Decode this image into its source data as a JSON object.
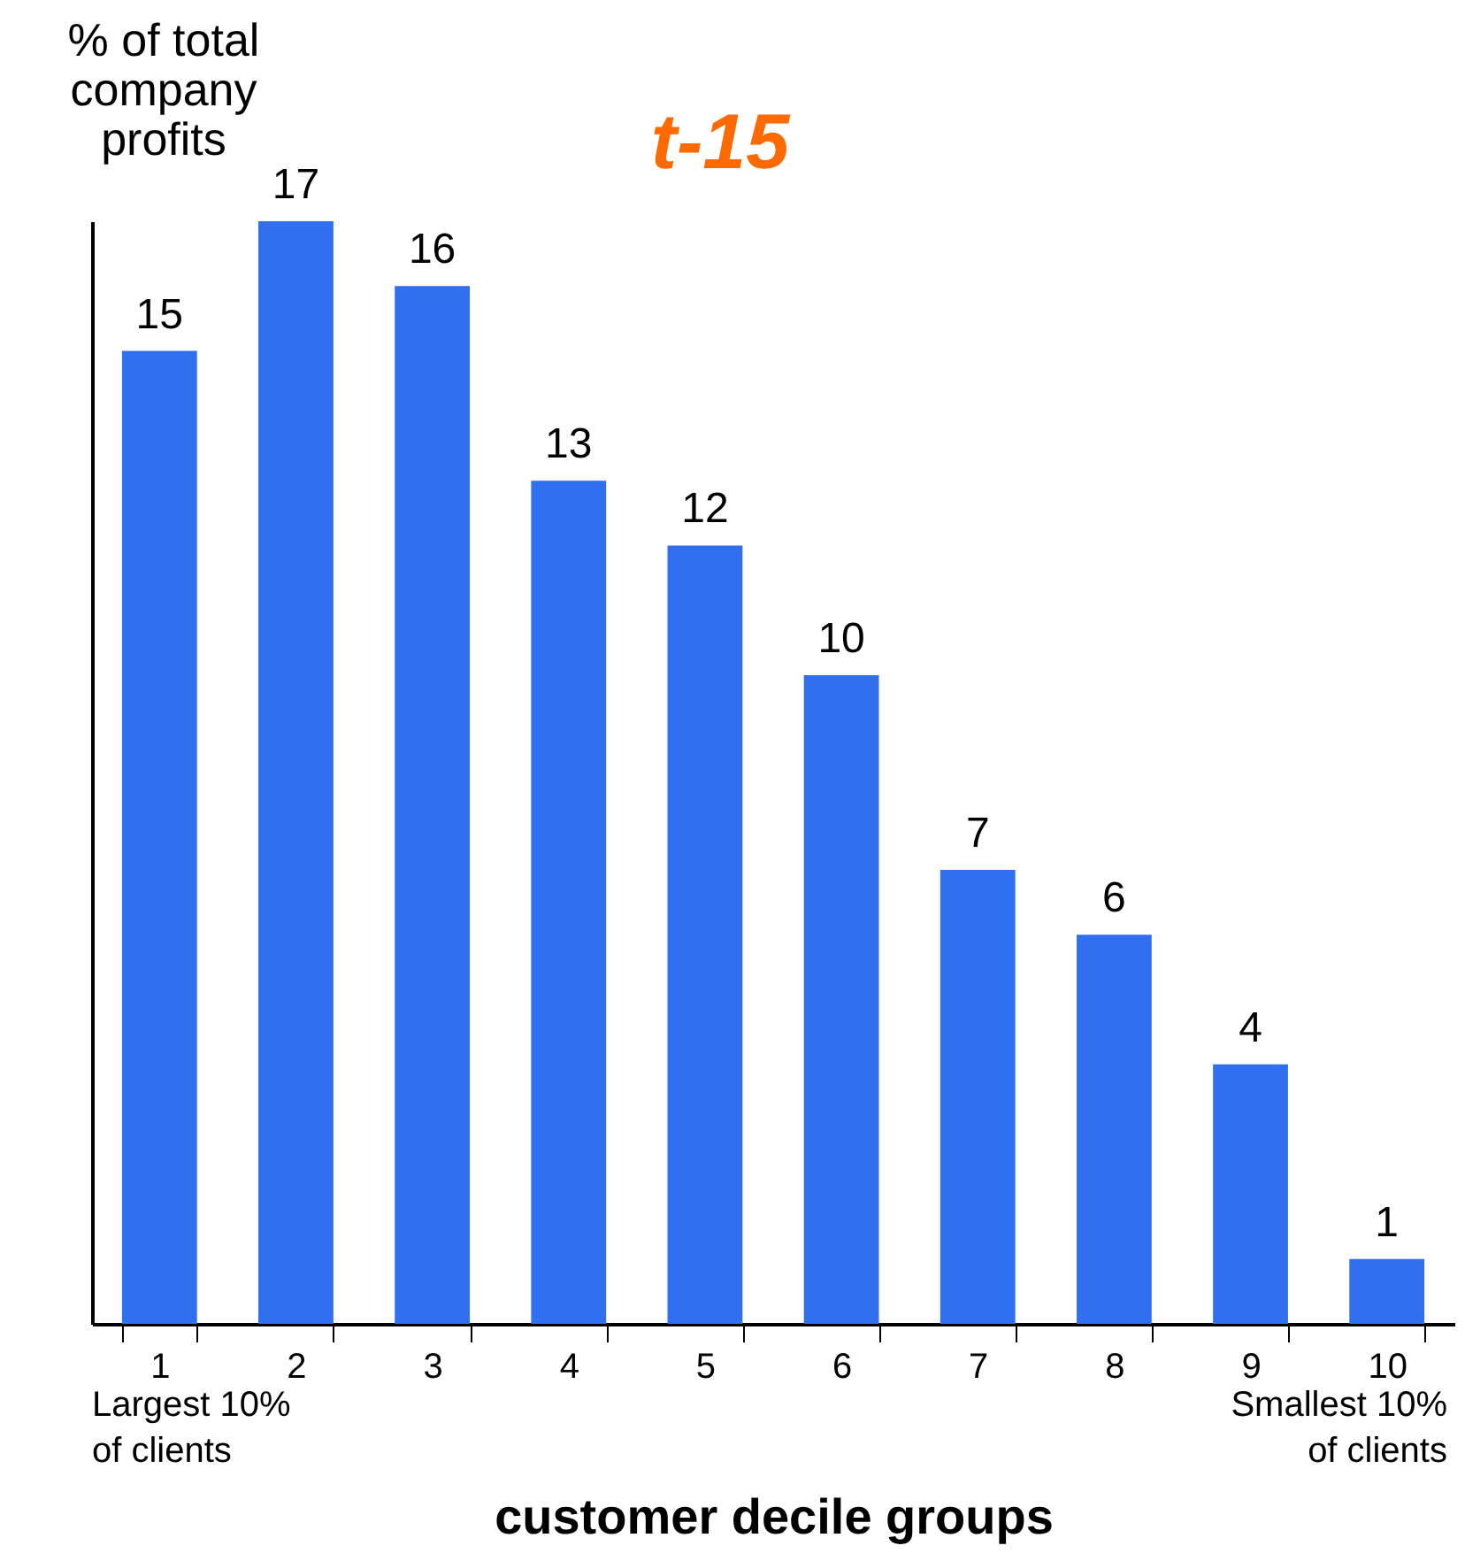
{
  "chart_data": {
    "type": "bar",
    "title": "t-15",
    "xlabel": "customer decile groups",
    "ylabel": "% of total\ncompany\nprofits",
    "categories": [
      "1",
      "2",
      "3",
      "4",
      "5",
      "6",
      "7",
      "8",
      "9",
      "10"
    ],
    "values": [
      15,
      17,
      16,
      13,
      12,
      10,
      7,
      6,
      4,
      1
    ],
    "color": "#2f6ff0",
    "data_labels": true,
    "annotations": [
      "Largest 10%\nof clients",
      "Smallest 10%\nof clients"
    ]
  }
}
